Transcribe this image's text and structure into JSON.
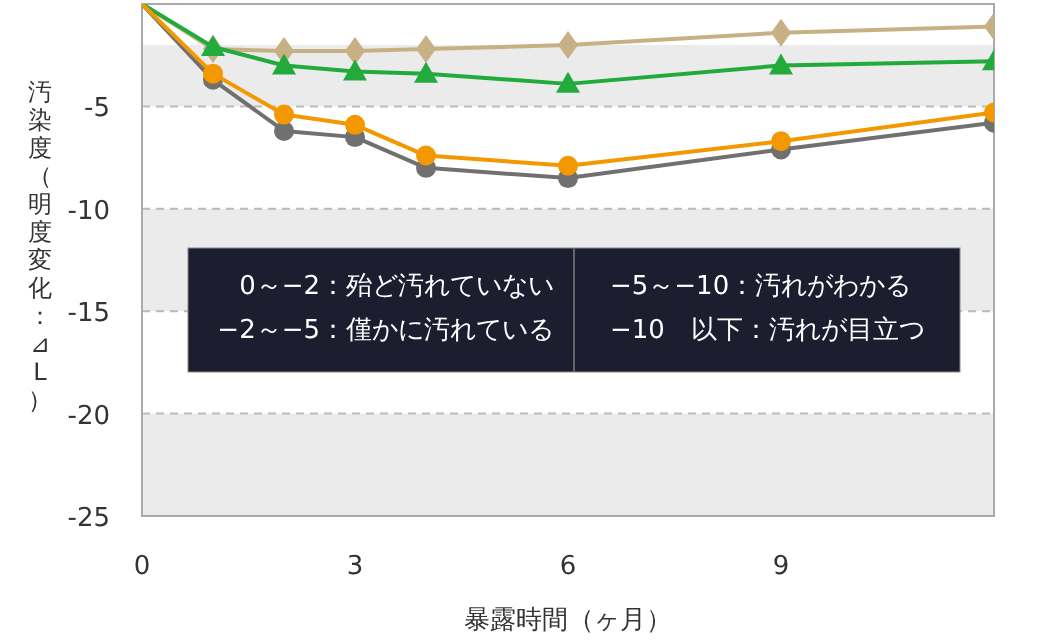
{
  "chart_data": {
    "type": "line",
    "xlabel": "暴露時間（ヶ月）",
    "ylabel": "汚染度（明度変化：⊿L）",
    "x": [
      0,
      1,
      2,
      3,
      4,
      6,
      9,
      12
    ],
    "series": [
      {
        "color": "#c8b085",
        "marker": "diamond",
        "values": [
          0,
          -2.2,
          -2.3,
          -2.3,
          -2.2,
          -2.0,
          -1.4,
          -1.1
        ]
      },
      {
        "color": "#22aa3c",
        "marker": "triangle",
        "values": [
          0,
          -2.1,
          -3.0,
          -3.3,
          -3.4,
          -3.9,
          -3.0,
          -2.8
        ]
      },
      {
        "color": "#707070",
        "marker": "circle",
        "values": [
          0,
          -3.7,
          -6.2,
          -6.5,
          -8.0,
          -8.5,
          -7.1,
          -5.8
        ]
      },
      {
        "color": "#f39800",
        "marker": "circle",
        "values": [
          0,
          -3.4,
          -5.4,
          -5.9,
          -7.4,
          -7.9,
          -6.7,
          -5.3
        ]
      }
    ],
    "xlim": [
      0,
      12
    ],
    "xticks": [
      0,
      3,
      6,
      9
    ],
    "ylim": [
      -25,
      0
    ],
    "yticks": [
      -5,
      -10,
      -15,
      -20,
      -25
    ],
    "grid": "y",
    "bands": [
      {
        "axis": "y",
        "from": -2,
        "to": -5,
        "color": "#ebebeb"
      },
      {
        "axis": "y",
        "from": -10,
        "to": -15,
        "color": "#ebebeb"
      },
      {
        "axis": "y",
        "from": -20,
        "to": -25,
        "color": "#ebebeb"
      }
    ],
    "annotations": [
      "0～−2：殆ど汚れていない",
      "−2～−5：僅かに汚れている",
      "−5～−10：汚れがわかる",
      "−10　以下：汚れが目立つ"
    ]
  }
}
